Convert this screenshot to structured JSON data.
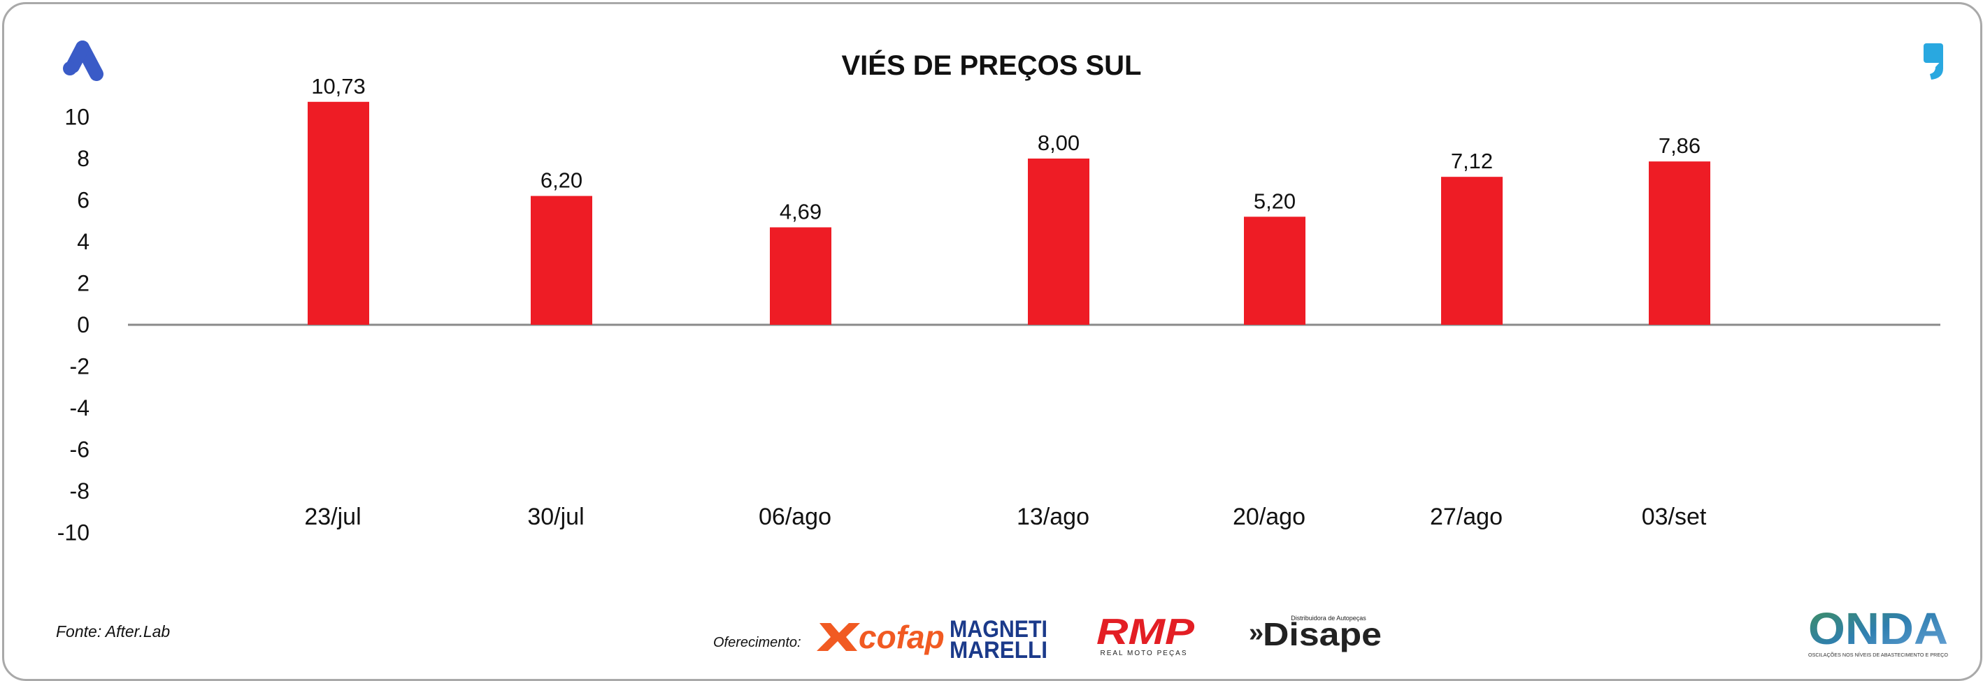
{
  "chart_data": {
    "type": "bar",
    "title": "VIÉS DE PREÇOS SUL",
    "categories": [
      "23/jul",
      "30/jul",
      "06/ago",
      "13/ago",
      "20/ago",
      "27/ago",
      "03/set"
    ],
    "values": [
      10.73,
      6.2,
      4.69,
      8.0,
      5.2,
      7.12,
      7.86
    ],
    "data_labels": [
      "10,73",
      "6,20",
      "4,69",
      "8,00",
      "5,20",
      "7,12",
      "7,86"
    ],
    "ylim": [
      -10,
      10
    ],
    "yticks": [
      10,
      8,
      6,
      4,
      2,
      0,
      -2,
      -4,
      -6,
      -8,
      -10
    ],
    "xlabel": "",
    "ylabel": "",
    "grid": false,
    "legend": "none",
    "bar_color": "#ee1c25"
  },
  "footer": {
    "source": "Fonte: After.Lab",
    "sponsor_label": "Oferecimento:"
  },
  "logos": {
    "top_left": "a-logo-icon",
    "top_right": "comma-quote-icon",
    "cofap": "cofap",
    "magneti_marelli": "MAGNETI MARELLI",
    "rmp": "RMP",
    "rmp_sub": "REAL MOTO PEÇAS",
    "disape": "Disape",
    "disape_sub": "Distribuidora de Autopeças",
    "onda": "ONDA",
    "onda_sub": "OSCILAÇÕES NOS NÍVEIS DE ABASTECIMENTO E PREÇO"
  },
  "colors": {
    "bar": "#ee1c25",
    "axis": "#8a8a8a",
    "brand_blue": "#3a5bc7",
    "quote_blue": "#29a8e0",
    "cofap_orange": "#f15a22",
    "marelli_blue": "#1b3a8a",
    "rmp_red": "#e31e24"
  }
}
